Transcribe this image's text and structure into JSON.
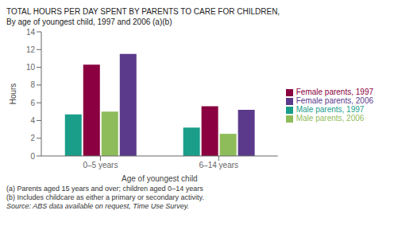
{
  "chart_data": {
    "type": "bar",
    "title": "TOTAL HOURS PER DAY SPENT BY PARENTS TO CARE FOR CHILDREN,",
    "subtitle": "By age of youngest child, 1997 and 2006 (a)(b)",
    "x_label": "Age of youngest child",
    "y_label": "Hours",
    "categories": [
      "0–5 years",
      "6–14 years"
    ],
    "series": [
      {
        "name": "Male parents, 1997",
        "color": "#1a9e8a",
        "values": [
          4.7,
          3.2
        ]
      },
      {
        "name": "Female parents, 1997",
        "color": "#8b0040",
        "values": [
          10.3,
          5.6
        ]
      },
      {
        "name": "Male parents, 2006",
        "color": "#8fbc5a",
        "values": [
          5.0,
          2.5
        ]
      },
      {
        "name": "Female parents, 2006",
        "color": "#5b3a8c",
        "values": [
          11.5,
          5.2
        ]
      }
    ],
    "ylim": [
      0,
      14
    ],
    "yticks": [
      0,
      2,
      4,
      6,
      8,
      10,
      12,
      14
    ],
    "grid": false,
    "legend": "right",
    "annotations": [
      "(a) Parents aged 15 years and over; children aged 0–14 years",
      "(b) Includes childcare as either a primary or secondary activity.",
      "Source: ABS data available on request, Time Use Survey."
    ]
  }
}
